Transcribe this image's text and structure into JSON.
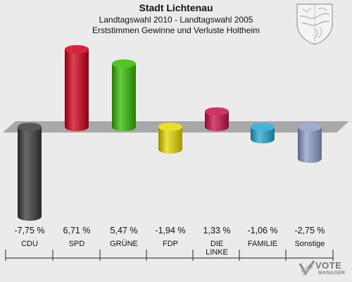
{
  "header": {
    "title": "Stadt Lichtenau",
    "subtitle": "Landtagswahl 2010 - Landtagswahl 2005",
    "subtitle2": "Erststimmen Gewinne und Verluste Holtheim"
  },
  "watermark": {
    "line1": "VOTE",
    "line2": "MANAGER"
  },
  "chart_data": {
    "type": "bar",
    "title": "Stadt Lichtenau",
    "subtitle": "Landtagswahl 2010 - Landtagswahl 2005 Erststimmen Gewinne und Verluste Holtheim",
    "categories": [
      "CDU",
      "SPD",
      "GRÜNE",
      "FDP",
      "DIE LINKE",
      "FAMILIE",
      "Sonstige"
    ],
    "values": [
      -7.75,
      6.71,
      5.47,
      -1.94,
      1.33,
      -1.06,
      -2.75
    ],
    "value_labels": [
      "-7,75 %",
      "6,71 %",
      "5,47 %",
      "-1,94 %",
      "1,33 %",
      "-1,06 %",
      "-2,75 %"
    ],
    "colors": [
      "#3a3a3a",
      "#d0001a",
      "#33bb00",
      "#e8d800",
      "#c8104a",
      "#22a8d0",
      "#8f9fc8"
    ],
    "ylim": [
      -7.75,
      6.71
    ],
    "grid": false,
    "legend": "none"
  }
}
